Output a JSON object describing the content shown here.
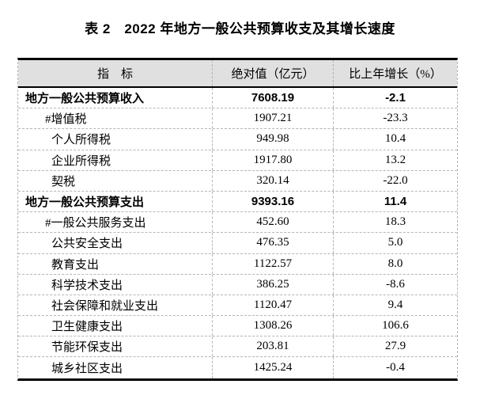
{
  "title": "表 2　2022 年地方一般公共预算收支及其增长速度",
  "table": {
    "headers": [
      "指　标",
      "绝对值（亿元）",
      "比上年增长（%）"
    ],
    "rows": [
      {
        "indicator": "地方一般公共预算收入",
        "value": "7608.19",
        "growth": "-2.1",
        "bold": true,
        "indent": 0
      },
      {
        "indicator": "#增值税",
        "value": "1907.21",
        "growth": "-23.3",
        "bold": false,
        "indent": 1
      },
      {
        "indicator": "个人所得税",
        "value": "949.98",
        "growth": "10.4",
        "bold": false,
        "indent": 2
      },
      {
        "indicator": "企业所得税",
        "value": "1917.80",
        "growth": "13.2",
        "bold": false,
        "indent": 2
      },
      {
        "indicator": "契税",
        "value": "320.14",
        "growth": "-22.0",
        "bold": false,
        "indent": 2
      },
      {
        "indicator": "地方一般公共预算支出",
        "value": "9393.16",
        "growth": "11.4",
        "bold": true,
        "indent": 0
      },
      {
        "indicator": "#一般公共服务支出",
        "value": "452.60",
        "growth": "18.3",
        "bold": false,
        "indent": 1
      },
      {
        "indicator": "公共安全支出",
        "value": "476.35",
        "growth": "5.0",
        "bold": false,
        "indent": 2
      },
      {
        "indicator": "教育支出",
        "value": "1122.57",
        "growth": "8.0",
        "bold": false,
        "indent": 2
      },
      {
        "indicator": "科学技术支出",
        "value": "386.25",
        "growth": "-8.6",
        "bold": false,
        "indent": 2
      },
      {
        "indicator": "社会保障和就业支出",
        "value": "1120.47",
        "growth": "9.4",
        "bold": false,
        "indent": 2
      },
      {
        "indicator": "卫生健康支出",
        "value": "1308.26",
        "growth": "106.6",
        "bold": false,
        "indent": 2
      },
      {
        "indicator": "节能环保支出",
        "value": "203.81",
        "growth": "27.9",
        "bold": false,
        "indent": 2
      },
      {
        "indicator": "城乡社区支出",
        "value": "1425.24",
        "growth": "-0.4",
        "bold": false,
        "indent": 2
      }
    ]
  },
  "colors": {
    "page_bg": "#ffffff",
    "text": "#000000",
    "header_bg": "#e0e0e0",
    "border_solid": "#000000",
    "border_dashed": "#b5b5b5"
  }
}
